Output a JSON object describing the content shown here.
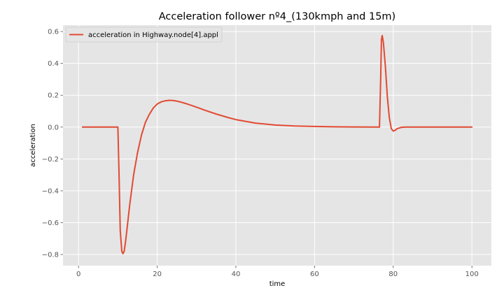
{
  "chart_data": {
    "type": "line",
    "title": "Acceleration follower nº4_(130kmph and 15m)",
    "xlabel": "time",
    "ylabel": "acceleration",
    "xlim": [
      -3.95,
      104.95
    ],
    "ylim": [
      -0.87,
      0.64
    ],
    "xticks": [
      0,
      20,
      40,
      60,
      80,
      100
    ],
    "xtick_labels": [
      "0",
      "20",
      "40",
      "60",
      "80",
      "100"
    ],
    "yticks": [
      -0.8,
      -0.6,
      -0.4,
      -0.2,
      0.0,
      0.2,
      0.4,
      0.6
    ],
    "ytick_labels": [
      "−0.8",
      "−0.6",
      "−0.4",
      "−0.2",
      "0.0",
      "0.2",
      "0.4",
      "0.6"
    ],
    "grid": true,
    "legend_position": "top-left",
    "colors": {
      "background": "#e5e5e5",
      "grid": "#ffffff",
      "series": "#e24a33"
    },
    "series": [
      {
        "name": "acceleration in Highway.node[4].appl",
        "x": [
          1,
          5,
          9,
          10,
          10.3,
          10.6,
          11,
          11.3,
          11.6,
          12,
          12.5,
          13,
          14,
          15,
          16,
          17,
          18,
          19,
          20,
          21,
          22,
          23,
          24,
          25,
          26,
          27,
          28,
          30,
          32,
          35,
          38,
          40,
          45,
          50,
          55,
          60,
          65,
          70,
          75,
          76,
          76.5,
          76.8,
          77,
          77.2,
          77.5,
          78,
          78.5,
          79,
          79.5,
          80,
          80.5,
          81,
          82,
          83,
          84,
          86,
          90,
          95,
          100
        ],
        "y": [
          0.0,
          0.0,
          0.0,
          0.0,
          -0.3,
          -0.65,
          -0.78,
          -0.795,
          -0.78,
          -0.71,
          -0.6,
          -0.49,
          -0.3,
          -0.16,
          -0.05,
          0.03,
          0.08,
          0.12,
          0.145,
          0.158,
          0.165,
          0.168,
          0.167,
          0.163,
          0.157,
          0.15,
          0.142,
          0.125,
          0.107,
          0.082,
          0.06,
          0.047,
          0.025,
          0.013,
          0.007,
          0.004,
          0.002,
          0.001,
          0.0005,
          0.0,
          0.0,
          0.3,
          0.55,
          0.575,
          0.53,
          0.38,
          0.19,
          0.06,
          -0.01,
          -0.025,
          -0.02,
          -0.01,
          -0.002,
          0.0,
          0.0,
          0.0,
          0.0,
          0.0,
          0.0
        ]
      }
    ]
  }
}
